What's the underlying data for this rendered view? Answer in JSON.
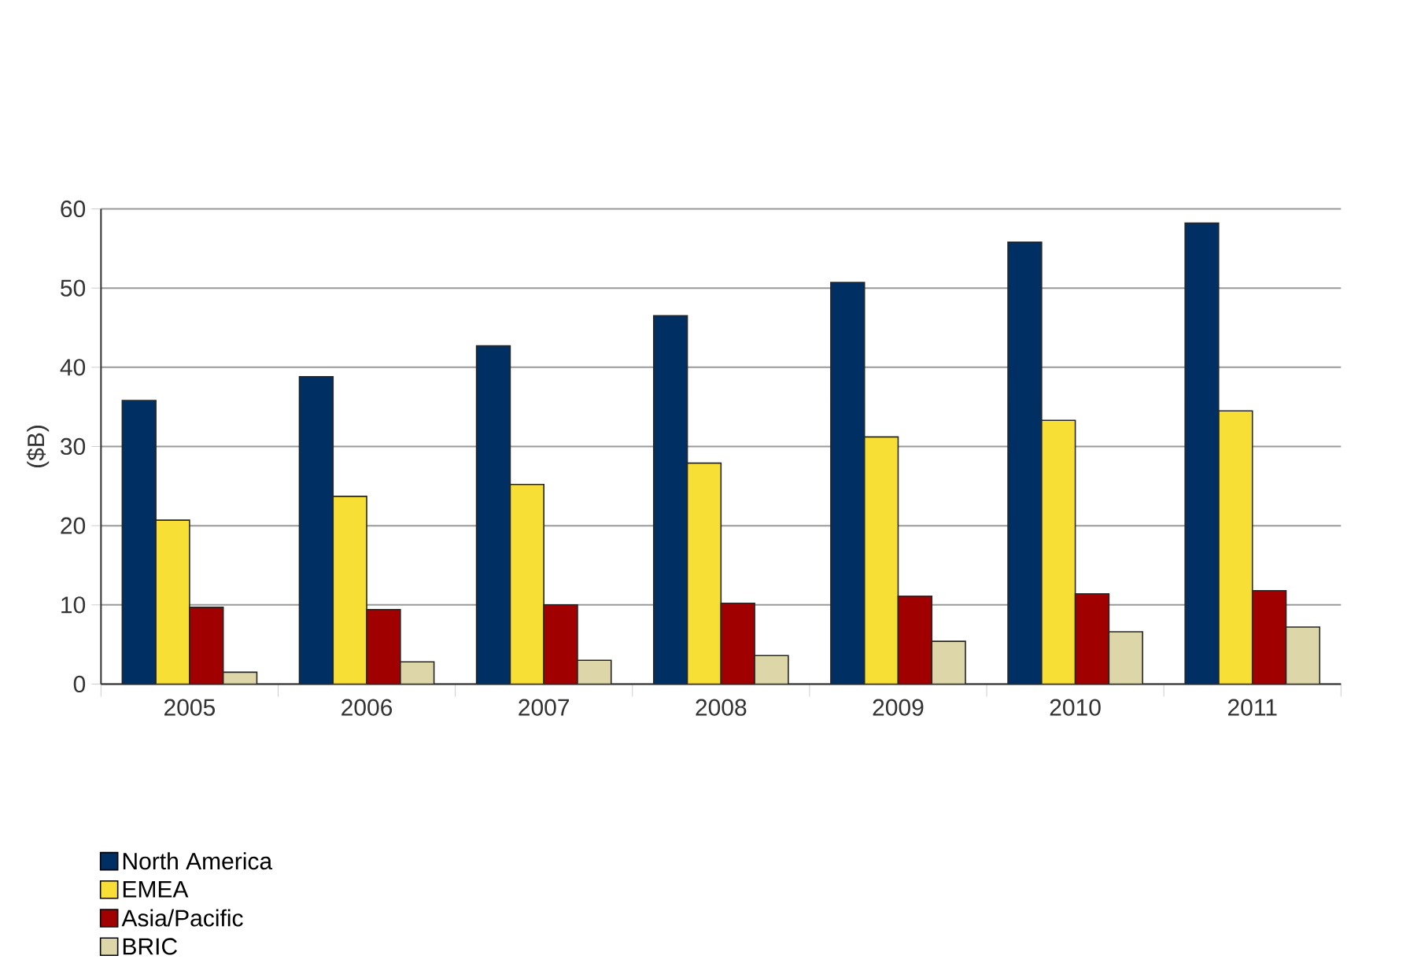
{
  "chart_data": {
    "type": "bar",
    "ylabel": "($B)",
    "categories": [
      "2005",
      "2006",
      "2007",
      "2008",
      "2009",
      "2010",
      "2011"
    ],
    "series": [
      {
        "name": "North America",
        "color": "#003063",
        "values": [
          35.8,
          38.8,
          42.7,
          46.5,
          50.7,
          55.8,
          58.2
        ]
      },
      {
        "name": "EMEA",
        "color": "#f7df35",
        "values": [
          20.7,
          23.7,
          25.2,
          27.9,
          31.2,
          33.3,
          34.5
        ]
      },
      {
        "name": "Asia/Pacific",
        "color": "#a00000",
        "values": [
          9.7,
          9.4,
          10.0,
          10.2,
          11.1,
          11.4,
          11.8
        ]
      },
      {
        "name": "BRIC",
        "color": "#ddd6a9",
        "values": [
          1.5,
          2.8,
          3.0,
          3.6,
          5.4,
          6.6,
          7.2
        ]
      }
    ],
    "ylim": [
      0,
      60
    ],
    "yticks": [
      0,
      10,
      20,
      30,
      40,
      50,
      60
    ],
    "grid": "y",
    "legend": "bottom left"
  }
}
